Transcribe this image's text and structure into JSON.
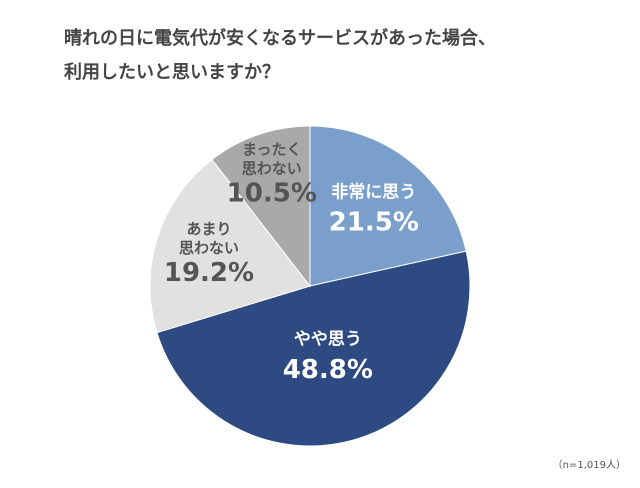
{
  "title_lines": [
    "晴れの日に電気代が安くなるサービスがあった場合、",
    "利用したいと思いますか？"
  ],
  "note": "（n=1,019人）",
  "chart_data": {
    "type": "pie",
    "title": "晴れの日に電気代が安くなるサービスがあった場合、利用したいと思いますか？",
    "slices": [
      {
        "label_lines": [
          "非常に思う"
        ],
        "value": 21.5,
        "value_label": "21.5%",
        "color": "#7a9fcb",
        "text_color": "#ffffff"
      },
      {
        "label_lines": [
          "やや思う"
        ],
        "value": 48.8,
        "value_label": "48.8%",
        "color": "#2d4a82",
        "text_color": "#ffffff"
      },
      {
        "label_lines": [
          "あまり",
          "思わない"
        ],
        "value": 19.2,
        "value_label": "19.2%",
        "color": "#e1e1e1",
        "text_color": "#555555"
      },
      {
        "label_lines": [
          "まったく",
          "思わない"
        ],
        "value": 10.5,
        "value_label": "10.5%",
        "color": "#a9a9a9",
        "text_color": "#555555"
      }
    ],
    "start_angle_deg": 0,
    "direction": "clockwise",
    "legend": "none"
  }
}
